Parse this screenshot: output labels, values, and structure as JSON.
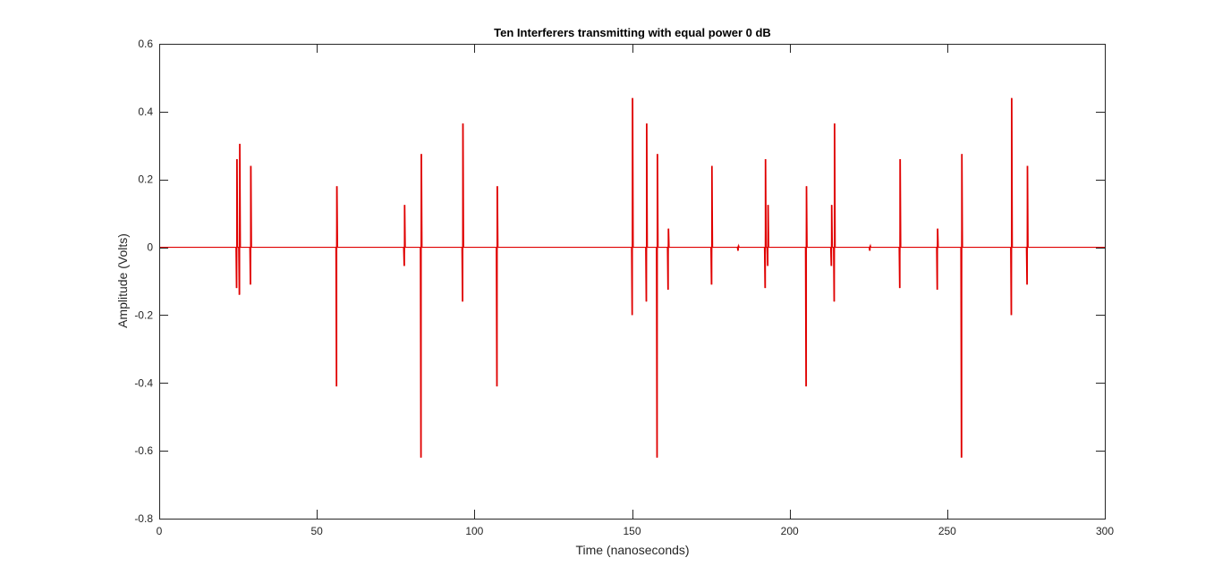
{
  "chart_data": {
    "type": "line",
    "title": "Ten Interferers transmitting with equal power 0 dB",
    "xlabel": "Time (nanoseconds)",
    "ylabel": "Amplitude (Volts)",
    "xlim": [
      0,
      300
    ],
    "ylim": [
      -0.8,
      0.6
    ],
    "xticks": [
      0,
      50,
      100,
      150,
      200,
      250,
      300
    ],
    "yticks": [
      -0.8,
      -0.6,
      -0.4,
      -0.2,
      0,
      0.2,
      0.4,
      0.6
    ],
    "xtick_labels": [
      "0",
      "50",
      "100",
      "150",
      "200",
      "250",
      "300"
    ],
    "ytick_labels": [
      "-0.8",
      "-0.6",
      "-0.4",
      "-0.2",
      "0",
      "0.2",
      "0.4",
      "0.6"
    ],
    "grid": false,
    "line_color": "#e00000",
    "series": [
      {
        "pulses": [
          {
            "t": 24.6,
            "max": 0.26,
            "min": -0.12
          },
          {
            "t": 25.5,
            "max": 0.305,
            "min": -0.14
          },
          {
            "t": 29.0,
            "max": 0.24,
            "min": -0.11
          },
          {
            "t": 56.3,
            "max": 0.18,
            "min": -0.41
          },
          {
            "t": 77.8,
            "max": 0.125,
            "min": -0.055
          },
          {
            "t": 83.1,
            "max": 0.275,
            "min": -0.62
          },
          {
            "t": 96.3,
            "max": 0.365,
            "min": -0.16
          },
          {
            "t": 107.2,
            "max": 0.18,
            "min": -0.41
          },
          {
            "t": 150.1,
            "max": 0.44,
            "min": -0.2
          },
          {
            "t": 154.6,
            "max": 0.365,
            "min": -0.16
          },
          {
            "t": 158.0,
            "max": 0.275,
            "min": -0.62
          },
          {
            "t": 161.5,
            "max": 0.055,
            "min": -0.125
          },
          {
            "t": 175.3,
            "max": 0.24,
            "min": -0.11
          },
          {
            "t": 183.7,
            "max": 0.005,
            "min": -0.01
          },
          {
            "t": 192.3,
            "max": 0.26,
            "min": -0.12
          },
          {
            "t": 193.1,
            "max": 0.125,
            "min": -0.055
          },
          {
            "t": 205.3,
            "max": 0.18,
            "min": -0.41
          },
          {
            "t": 213.3,
            "max": 0.125,
            "min": -0.055
          },
          {
            "t": 214.2,
            "max": 0.365,
            "min": -0.16
          },
          {
            "t": 225.5,
            "max": 0.005,
            "min": -0.01
          },
          {
            "t": 235.0,
            "max": 0.26,
            "min": -0.12
          },
          {
            "t": 246.9,
            "max": 0.055,
            "min": -0.125
          },
          {
            "t": 254.6,
            "max": 0.275,
            "min": -0.62
          },
          {
            "t": 270.4,
            "max": 0.44,
            "min": -0.2
          },
          {
            "t": 275.4,
            "max": 0.24,
            "min": -0.11
          }
        ]
      }
    ]
  }
}
